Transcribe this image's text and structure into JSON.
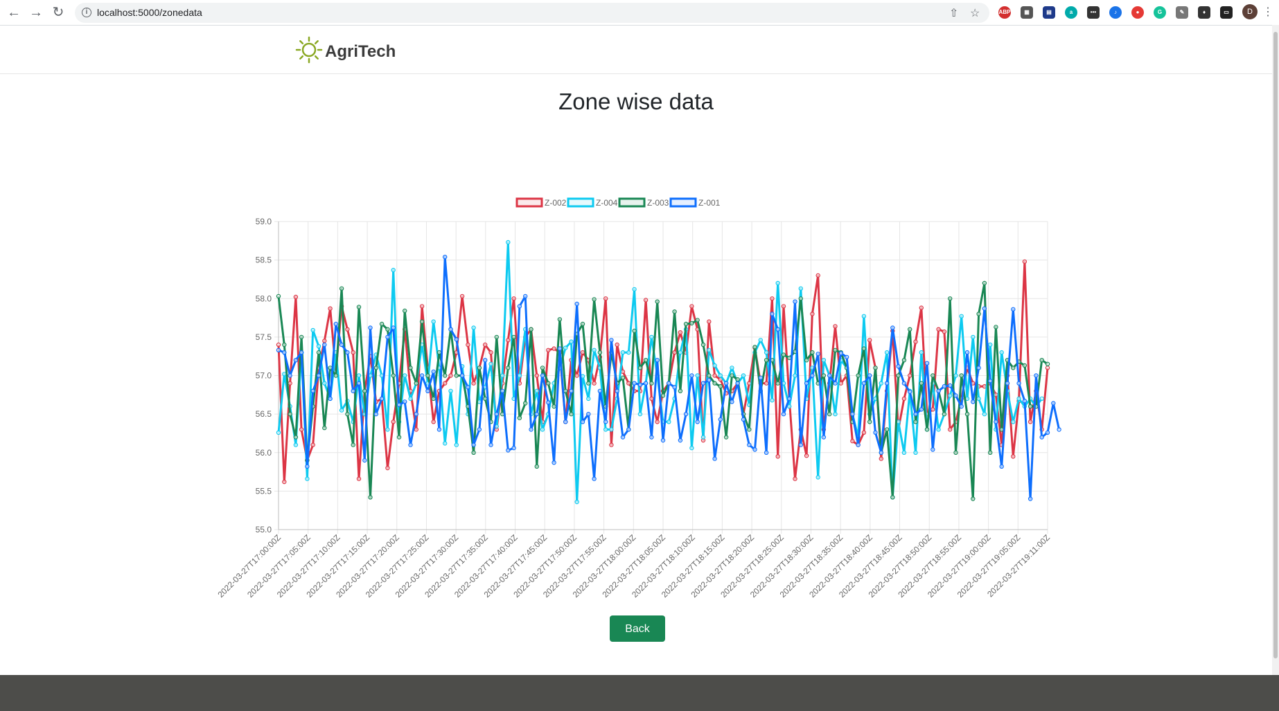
{
  "browser": {
    "url": "localhost:5000/zonedata",
    "profile_initial": "D"
  },
  "header": {
    "brand": "AgriTech"
  },
  "page": {
    "title": "Zone wise data",
    "back_label": "Back"
  },
  "colors": {
    "Z-002": "#dc3545",
    "Z-004": "#0dcaf0",
    "Z-003": "#198754",
    "Z-001": "#0d6efd",
    "footer": "#4d4d4a"
  },
  "chart_data": {
    "type": "line",
    "title": "",
    "xlabel": "",
    "ylabel": "",
    "ylim": [
      55.0,
      59.0
    ],
    "y_ticks": [
      "59.0",
      "58.5",
      "58.0",
      "57.5",
      "57.0",
      "56.5",
      "56.0",
      "55.5",
      "55.0"
    ],
    "grid": true,
    "legend_position": "top",
    "x_tick_labels": [
      "2022-03-27T17:00:00Z",
      "2022-03-27T17:05:00Z",
      "2022-03-27T17:10:00Z",
      "2022-03-27T17:15:00Z",
      "2022-03-27T17:20:00Z",
      "2022-03-27T17:25:00Z",
      "2022-03-27T17:30:00Z",
      "2022-03-27T17:35:00Z",
      "2022-03-27T17:40:00Z",
      "2022-03-27T17:45:00Z",
      "2022-03-27T17:50:00Z",
      "2022-03-27T17:55:00Z",
      "2022-03-27T18:00:00Z",
      "2022-03-27T18:05:00Z",
      "2022-03-27T18:10:00Z",
      "2022-03-27T18:15:00Z",
      "2022-03-27T18:20:00Z",
      "2022-03-27T18:25:00Z",
      "2022-03-27T18:30:00Z",
      "2022-03-27T18:35:00Z",
      "2022-03-27T18:40:00Z",
      "2022-03-27T18:45:00Z",
      "2022-03-27T18:50:00Z",
      "2022-03-27T18:55:00Z",
      "2022-03-27T19:00:00Z",
      "2022-03-27T19:05:00Z",
      "2022-03-27T19:11:00Z"
    ],
    "series": [
      {
        "name": "Z-002",
        "values": [
          57.4,
          55.62,
          56.9,
          58.02,
          56.3,
          55.9,
          56.1,
          57.1,
          57.45,
          57.87,
          57.05,
          57.9,
          57.6,
          57.3,
          55.66,
          56.8,
          57.25,
          56.66,
          56.7,
          55.8,
          56.4,
          56.9,
          57.6,
          56.8,
          56.3,
          57.9,
          57.1,
          56.4,
          56.8,
          56.9,
          57.0,
          57.3,
          58.03,
          57.4,
          56.9,
          57.1,
          57.4,
          57.3,
          56.3,
          56.9,
          57.46,
          58.0,
          56.9,
          57.5,
          57.6,
          57.0,
          56.4,
          57.33,
          57.35,
          57.3,
          56.4,
          57.2,
          57.0,
          57.3,
          57.2,
          56.9,
          57.24,
          58.0,
          56.1,
          57.4,
          57.05,
          56.9,
          56.8,
          56.8,
          57.98,
          56.7,
          56.4,
          56.8,
          56.9,
          57.3,
          57.56,
          57.3,
          57.9,
          57.6,
          56.16,
          57.7,
          57.0,
          56.95,
          56.77,
          56.8,
          56.9,
          56.5,
          56.9,
          57.36,
          56.9,
          56.9,
          58.0,
          55.95,
          57.9,
          56.7,
          55.66,
          56.3,
          55.96,
          57.8,
          58.3,
          56.3,
          56.9,
          57.64,
          56.9,
          57.0,
          56.15,
          56.1,
          56.26,
          57.46,
          57.1,
          55.92,
          56.8,
          57.58,
          56.3,
          56.7,
          57.0,
          57.44,
          57.88,
          56.5,
          56.56,
          57.6,
          57.57,
          56.3,
          56.4,
          56.7,
          57.1,
          56.9,
          56.86,
          56.86,
          56.9,
          56.75,
          56.1,
          57.0,
          55.95,
          56.67,
          58.48,
          56.4,
          56.8,
          56.3,
          57.1
        ]
      },
      {
        "name": "Z-004",
        "values": [
          56.26,
          57.02,
          56.6,
          56.1,
          57.3,
          55.66,
          57.59,
          57.38,
          56.9,
          56.7,
          57.3,
          56.55,
          56.67,
          56.4,
          57.0,
          56.5,
          57.0,
          57.27,
          57.0,
          56.3,
          58.37,
          56.4,
          57.0,
          56.7,
          56.9,
          57.4,
          56.9,
          57.7,
          57.1,
          56.12,
          56.8,
          56.1,
          57.12,
          56.5,
          57.62,
          56.66,
          56.85,
          57.15,
          56.34,
          57.0,
          58.73,
          56.7,
          57.0,
          57.6,
          56.5,
          56.8,
          56.3,
          56.5,
          56.9,
          57.1,
          57.36,
          57.44,
          55.36,
          56.99,
          56.7,
          57.33,
          57.1,
          56.3,
          56.3,
          56.7,
          57.3,
          57.3,
          58.12,
          56.5,
          56.9,
          57.5,
          57.0,
          56.4,
          56.4,
          56.7,
          57.3,
          57.6,
          56.06,
          57.0,
          56.2,
          57.33,
          57.13,
          57.0,
          56.9,
          57.1,
          56.9,
          57.0,
          56.62,
          57.3,
          57.46,
          57.3,
          56.68,
          58.2,
          56.9,
          56.6,
          57.0,
          58.13,
          56.7,
          57.1,
          55.68,
          57.2,
          57.0,
          56.5,
          57.2,
          57.1,
          56.5,
          56.2,
          57.77,
          56.5,
          56.7,
          56.9,
          57.3,
          55.42,
          56.4,
          56.0,
          56.8,
          56.0,
          57.3,
          56.3,
          56.9,
          56.3,
          56.5,
          56.74,
          57.0,
          57.77,
          56.7,
          57.5,
          56.7,
          56.5,
          57.4,
          56.3,
          57.3,
          56.8,
          56.4,
          56.7,
          56.6,
          56.7,
          56.6,
          56.7
        ]
      },
      {
        "name": "Z-003",
        "values": [
          58.03,
          57.4,
          56.5,
          56.2,
          57.5,
          55.9,
          56.6,
          57.3,
          56.32,
          57.1,
          57.0,
          58.13,
          56.5,
          56.1,
          57.89,
          56.8,
          55.42,
          57.1,
          57.67,
          57.6,
          57.0,
          56.2,
          57.84,
          57.1,
          56.9,
          57.7,
          57.0,
          56.7,
          57.3,
          57.0,
          57.6,
          57.0,
          57.0,
          56.6,
          56.0,
          57.1,
          56.7,
          56.4,
          57.5,
          56.5,
          57.1,
          57.5,
          56.45,
          56.64,
          57.6,
          55.82,
          57.1,
          56.9,
          56.6,
          57.73,
          56.8,
          56.5,
          57.54,
          57.67,
          56.9,
          57.99,
          57.3,
          56.6,
          57.3,
          56.9,
          56.97,
          56.3,
          57.58,
          57.1,
          57.2,
          56.9,
          57.96,
          56.74,
          56.9,
          57.83,
          56.8,
          57.67,
          57.68,
          57.72,
          57.4,
          57.0,
          56.9,
          56.86,
          56.2,
          57.0,
          56.95,
          56.5,
          56.3,
          57.37,
          56.8,
          57.2,
          57.2,
          56.9,
          57.27,
          57.23,
          57.31,
          58.0,
          57.2,
          57.3,
          56.9,
          57.0,
          56.5,
          57.33,
          57.3,
          57.1,
          56.4,
          57.0,
          57.35,
          56.4,
          57.1,
          56.0,
          56.3,
          55.42,
          57.0,
          57.2,
          57.6,
          56.4,
          56.9,
          56.3,
          57.0,
          56.8,
          56.5,
          58.0,
          56.0,
          57.0,
          56.5,
          55.4,
          57.8,
          58.2,
          56.0,
          57.63,
          56.3,
          57.2,
          57.1,
          57.18,
          57.13,
          56.6,
          56.6,
          57.2,
          57.15
        ]
      },
      {
        "name": "Z-001",
        "values": [
          57.33,
          57.3,
          57.0,
          57.2,
          57.3,
          55.82,
          56.8,
          57.0,
          57.4,
          56.7,
          57.67,
          57.4,
          57.3,
          56.8,
          56.9,
          55.9,
          57.62,
          56.5,
          56.7,
          57.5,
          57.62,
          56.62,
          56.66,
          56.1,
          56.5,
          57.0,
          56.8,
          57.05,
          56.3,
          58.54,
          57.6,
          57.47,
          57.0,
          56.85,
          56.1,
          56.3,
          57.2,
          56.1,
          56.5,
          56.8,
          56.03,
          56.06,
          57.9,
          58.03,
          56.3,
          56.5,
          57.0,
          56.65,
          55.87,
          57.35,
          56.4,
          56.8,
          57.93,
          56.4,
          56.5,
          55.66,
          56.8,
          56.4,
          57.46,
          56.8,
          56.2,
          56.3,
          56.9,
          56.88,
          56.9,
          56.2,
          57.2,
          56.16,
          56.9,
          56.85,
          56.16,
          56.5,
          57.0,
          56.4,
          56.9,
          56.94,
          55.92,
          56.43,
          56.9,
          56.66,
          56.9,
          56.43,
          56.1,
          56.04,
          56.97,
          56.0,
          57.8,
          57.6,
          56.5,
          56.7,
          57.96,
          56.1,
          56.9,
          57.0,
          57.28,
          56.2,
          57.0,
          56.9,
          57.29,
          57.24,
          56.5,
          56.1,
          56.9,
          57.0,
          56.26,
          56.0,
          56.9,
          57.62,
          57.12,
          56.9,
          56.79,
          56.5,
          56.56,
          57.16,
          56.04,
          56.8,
          56.86,
          56.87,
          56.74,
          56.6,
          57.3,
          56.66,
          57.1,
          57.87,
          56.93,
          56.4,
          55.82,
          56.9,
          57.86,
          56.9,
          56.67,
          55.4,
          57.0,
          56.2,
          56.26,
          56.64,
          56.3
        ]
      }
    ]
  }
}
